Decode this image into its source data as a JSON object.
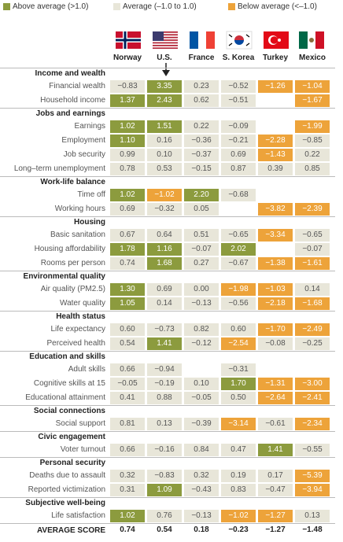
{
  "legend": [
    "Above average (>1.0)",
    "Average (–1.0 to 1.0)",
    "Below average (<–1.0)"
  ],
  "countries": [
    "Norway",
    "U.S.",
    "France",
    "S. Korea",
    "Turkey",
    "Mexico"
  ],
  "sections": [
    {
      "title": "Income and wealth",
      "rows": [
        {
          "label": "Financial wealth",
          "values": [
            "−0.83",
            "3.35",
            "0.23",
            "−0.52",
            "−1.26",
            "−1.04"
          ]
        },
        {
          "label": "Household income",
          "values": [
            "1.37",
            "2.43",
            "0.62",
            "−0.51",
            null,
            "−1.67"
          ]
        }
      ]
    },
    {
      "title": "Jobs and earnings",
      "rows": [
        {
          "label": "Earnings",
          "values": [
            "1.02",
            "1.51",
            "0.22",
            "−0.09",
            null,
            "−1.99"
          ]
        },
        {
          "label": "Employment",
          "values": [
            "1.10",
            "0.16",
            "−0.36",
            "−0.21",
            "−2.28",
            "−0.85"
          ]
        },
        {
          "label": "Job security",
          "values": [
            "0.99",
            "0.10",
            "−0.37",
            "0.69",
            "−1.43",
            "0.22"
          ]
        },
        {
          "label": "Long–term unemployment",
          "values": [
            "0.78",
            "0.53",
            "−0.15",
            "0.87",
            "0.39",
            "0.85"
          ]
        }
      ]
    },
    {
      "title": "Work-life balance",
      "rows": [
        {
          "label": "Time off",
          "values": [
            "1.02",
            "−1.02",
            "2.20",
            "−0.68",
            null,
            null
          ]
        },
        {
          "label": "Working hours",
          "values": [
            "0.69",
            "−0.32",
            "0.05",
            null,
            "−3.82",
            "−2.39"
          ]
        }
      ]
    },
    {
      "title": "Housing",
      "rows": [
        {
          "label": "Basic sanitation",
          "values": [
            "0.67",
            "0.64",
            "0.51",
            "−0.65",
            "−3.34",
            "−0.65"
          ]
        },
        {
          "label": "Housing affordability",
          "values": [
            "1.78",
            "1.16",
            "−0.07",
            "2.02",
            null,
            "−0.07"
          ]
        },
        {
          "label": "Rooms per person",
          "values": [
            "0.74",
            "1.68",
            "0.27",
            "−0.67",
            "−1.38",
            "−1.61"
          ]
        }
      ]
    },
    {
      "title": "Environmental quality",
      "rows": [
        {
          "label": "Air quality (PM2.5)",
          "values": [
            "1.30",
            "0.69",
            "0.00",
            "−1.98",
            "−1.03",
            "0.14"
          ]
        },
        {
          "label": "Water quality",
          "values": [
            "1.05",
            "0.14",
            "−0.13",
            "−0.56",
            "−2.18",
            "−1.68"
          ]
        }
      ]
    },
    {
      "title": "Health status",
      "rows": [
        {
          "label": "Life expectancy",
          "values": [
            "0.60",
            "−0.73",
            "0.82",
            "0.60",
            "−1.70",
            "−2.49"
          ]
        },
        {
          "label": "Perceived health",
          "values": [
            "0.54",
            "1.41",
            "−0.12",
            "−2.54",
            "−0.08",
            "−0.25"
          ]
        }
      ]
    },
    {
      "title": "Education and skills",
      "rows": [
        {
          "label": "Adult skills",
          "values": [
            "0.66",
            "−0.94",
            null,
            "−0.31",
            null,
            null
          ]
        },
        {
          "label": "Cognitive skills at 15",
          "values": [
            "−0.05",
            "−0.19",
            "0.10",
            "1.70",
            "−1.31",
            "−3.00"
          ]
        },
        {
          "label": "Educational attainment",
          "values": [
            "0.41",
            "0.88",
            "−0.05",
            "0.50",
            "−2.64",
            "−2.41"
          ]
        }
      ]
    },
    {
      "title": "Social connections",
      "rows": [
        {
          "label": "Social support",
          "values": [
            "0.81",
            "0.13",
            "−0.39",
            "−3.14",
            "−0.61",
            "−2.34"
          ]
        }
      ]
    },
    {
      "title": "Civic engagement",
      "rows": [
        {
          "label": "Voter turnout",
          "values": [
            "0.66",
            "−0.16",
            "0.84",
            "0.47",
            "1.41",
            "−0.55"
          ]
        }
      ]
    },
    {
      "title": "Personal security",
      "rows": [
        {
          "label": "Deaths due to assault",
          "values": [
            "0.32",
            "−0.83",
            "0.32",
            "0.19",
            "0.17",
            "−5.39"
          ]
        },
        {
          "label": "Reported victimization",
          "values": [
            "0.31",
            "1.09",
            "−0.43",
            "0.83",
            "−0.47",
            "−3.94"
          ]
        }
      ]
    },
    {
      "title": "Subjective well-being",
      "rows": [
        {
          "label": "Life satisfaction",
          "values": [
            "1.02",
            "0.76",
            "−0.13",
            "−1.02",
            "−1.27",
            "0.13"
          ]
        }
      ]
    }
  ],
  "average": {
    "label": "AVERAGE SCORE",
    "values": [
      "0.74",
      "0.54",
      "0.18",
      "−0.23",
      "−1.27",
      "−1.48"
    ]
  }
}
